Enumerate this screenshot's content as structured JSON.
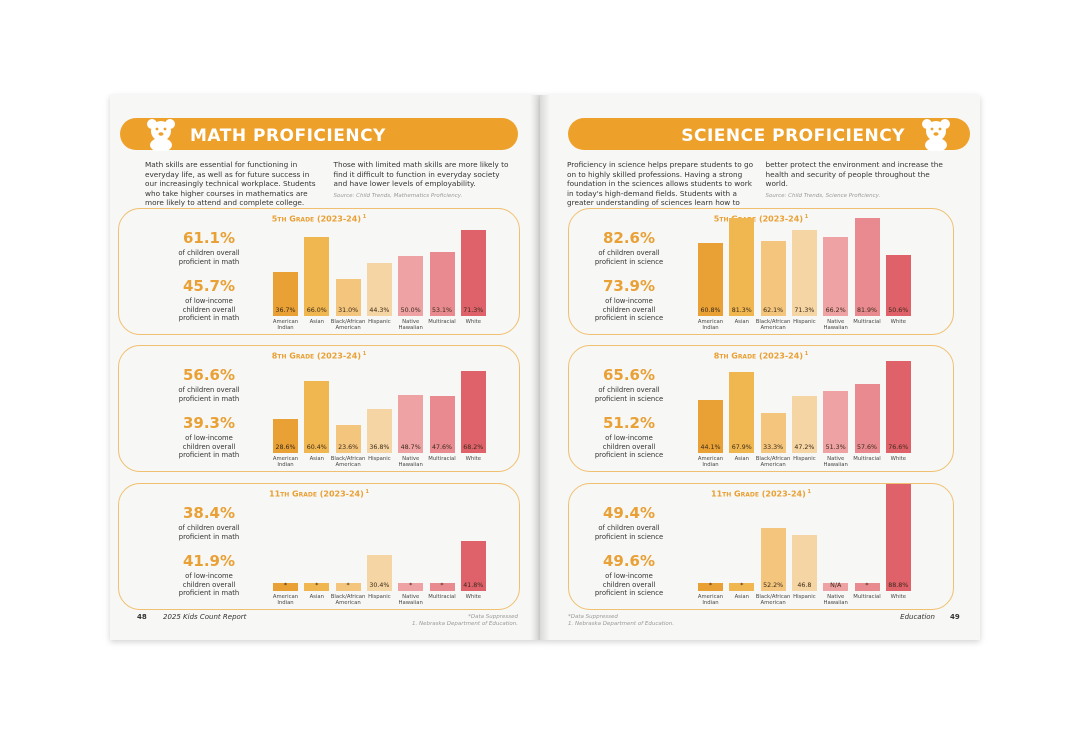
{
  "categories": [
    "American Indian",
    "Asian",
    "Black/African American",
    "Hispanic",
    "Native Hawaiian",
    "Multiracial",
    "White"
  ],
  "bar_colors": [
    "#e9a035",
    "#f0b64f",
    "#f4c57c",
    "#f5d5a3",
    "#eea2a4",
    "#e88a8f",
    "#df616a"
  ],
  "pages": [
    {
      "number": "48",
      "title": "MATH PROFICIENCY",
      "section": "2025 Kids Count Report",
      "intro": "Math skills are essential for functioning in everyday life, as well as for future success in our increasingly technical workplace. Students who take higher courses in mathematics are more likely to attend and complete college. Those with limited math skills are more likely to find it difficult to function in everyday society and have lower levels of employability.",
      "source": "Source: Child Trends, Mathematics Proficiency.",
      "notes": [
        "*Data Suppressed",
        "1. Nebraska Department of Education."
      ],
      "charts": [
        {
          "type": "bar",
          "title": "5th Grade (2023-24)",
          "title_note": "1",
          "stats": [
            {
              "value": "61.1%",
              "caption": "of children overall proficient in math"
            },
            {
              "value": "45.7%",
              "caption": "of low-income children overall proficient in math"
            }
          ],
          "values": [
            36.7,
            66.0,
            31.0,
            44.3,
            50.0,
            53.1,
            71.3
          ],
          "value_labels": [
            "36.7%",
            "66.0%",
            "31.0%",
            "44.3%",
            "50.0%",
            "53.1%",
            "71.3%"
          ]
        },
        {
          "type": "bar",
          "title": "8th Grade (2023-24)",
          "title_note": "1",
          "stats": [
            {
              "value": "56.6%",
              "caption": "of children overall proficient in math"
            },
            {
              "value": "39.3%",
              "caption": "of low-income children overall proficient in math"
            }
          ],
          "values": [
            28.6,
            60.4,
            23.6,
            36.8,
            48.7,
            47.6,
            68.2
          ],
          "value_labels": [
            "28.6%",
            "60.4%",
            "23.6%",
            "36.8%",
            "48.7%",
            "47.6%",
            "68.2%"
          ]
        },
        {
          "type": "bar",
          "title": "11th Grade (2023-24)",
          "title_note": "1",
          "stats": [
            {
              "value": "38.4%",
              "caption": "of children overall proficient in math"
            },
            {
              "value": "41.9%",
              "caption": "of low-income children overall proficient in math"
            }
          ],
          "values": [
            null,
            null,
            null,
            30.4,
            null,
            null,
            41.8
          ],
          "value_labels": [
            "*",
            "*",
            "*",
            "30.4%",
            "*",
            "*",
            "41.8%"
          ]
        }
      ]
    },
    {
      "number": "49",
      "title": "SCIENCE PROFICIENCY",
      "section": "Education",
      "intro": "Proficiency in science helps prepare students to go on to highly skilled professions. Having a strong foundation in the sciences allows students to work in today's high-demand fields. Students with a greater understanding of sciences learn how to better protect the environment and increase the health and security of people throughout the world.",
      "source": "Source: Child Trends, Science Proficiency.",
      "notes": [
        "*Data Suppressed",
        "1. Nebraska Department of Education."
      ],
      "charts": [
        {
          "type": "bar",
          "title": "5th Grade (2023-24)",
          "title_note": "1",
          "stats": [
            {
              "value": "82.6%",
              "caption": "of children overall proficient in science"
            },
            {
              "value": "73.9%",
              "caption": "of low-income children overall proficient in science"
            }
          ],
          "values": [
            60.8,
            81.3,
            62.1,
            71.3,
            66.2,
            81.9,
            50.6
          ],
          "value_labels": [
            "60.8%",
            "81.3%",
            "62.1%",
            "71.3%",
            "66.2%",
            "81.9%",
            "50.6%"
          ]
        },
        {
          "type": "bar",
          "title": "8th Grade (2023-24)",
          "title_note": "1",
          "stats": [
            {
              "value": "65.6%",
              "caption": "of children overall proficient in science"
            },
            {
              "value": "51.2%",
              "caption": "of low-income children overall proficient in science"
            }
          ],
          "values": [
            44.1,
            67.9,
            33.3,
            47.2,
            51.3,
            57.6,
            76.6
          ],
          "value_labels": [
            "44.1%",
            "67.9%",
            "33.3%",
            "47.2%",
            "51.3%",
            "57.6%",
            "76.6%"
          ]
        },
        {
          "type": "bar",
          "title": "11th Grade (2023-24)",
          "title_note": "1",
          "stats": [
            {
              "value": "49.4%",
              "caption": "of children overall proficient in science"
            },
            {
              "value": "49.6%",
              "caption": "of low-income children overall proficient in science"
            }
          ],
          "values": [
            null,
            null,
            52.2,
            46.8,
            null,
            null,
            88.8
          ],
          "value_labels": [
            "*",
            "*",
            "52.2%",
            "46.8",
            "N/A",
            "*",
            "88.8%"
          ]
        }
      ]
    }
  ]
}
